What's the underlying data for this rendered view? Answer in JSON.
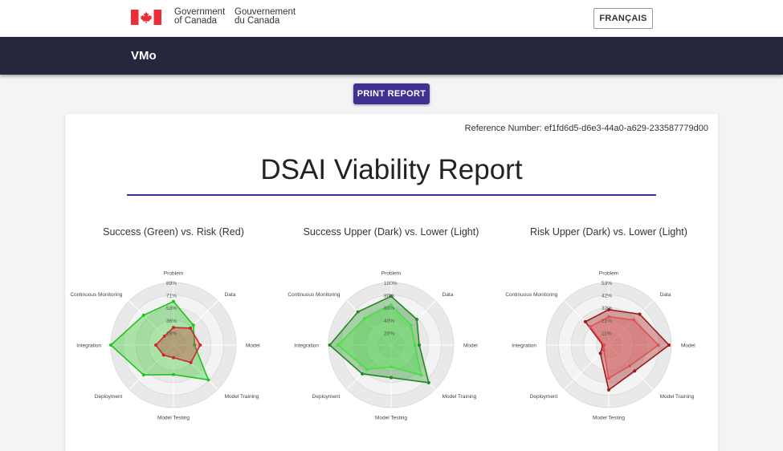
{
  "header": {
    "gov_en_line1": "Government",
    "gov_en_line2": "of Canada",
    "gov_fr_line1": "Gouvernement",
    "gov_fr_line2": "du Canada",
    "language_button": "FRANÇAIS",
    "flag_color": "#eb2d37"
  },
  "app_bar": {
    "title": "VMo",
    "background": "#26273f"
  },
  "print_button": {
    "label": "PRINT REPORT",
    "color": "#3f3294"
  },
  "report": {
    "reference": "Reference Number: ef1fd6d5-d6e3-44a0-a629-233587779d00",
    "title": "DSAI Viability Report"
  },
  "chart_data": [
    {
      "type": "radar",
      "title": "Success (Green) vs. Risk (Red)",
      "categories": [
        "Problem",
        "Data",
        "Model",
        "Model Training",
        "Model Testing",
        "Deployment",
        "Integration",
        "Continuous Monitoring"
      ],
      "tick_labels": [
        "18%",
        "36%",
        "53%",
        "71%",
        "89%"
      ],
      "range": [
        0,
        89
      ],
      "series": [
        {
          "color": "#22c41e",
          "values": [
            62,
            40,
            30,
            70,
            42,
            60,
            89,
            60
          ]
        },
        {
          "color": "#c72b2b",
          "values": [
            25,
            34,
            38,
            35,
            18,
            20,
            25,
            18
          ]
        }
      ]
    },
    {
      "type": "radar",
      "title": "Success Upper (Dark) vs. Lower (Light)",
      "categories": [
        "Problem",
        "Data",
        "Model",
        "Model Training",
        "Model Testing",
        "Deployment",
        "Integration",
        "Continuous Monitoring"
      ],
      "tick_labels": [
        "20%",
        "40%",
        "60%",
        "80%",
        "100%"
      ],
      "range": [
        0,
        100
      ],
      "series": [
        {
          "color": "#1f8a20",
          "values": [
            78,
            58,
            45,
            85,
            52,
            65,
            98,
            75
          ]
        },
        {
          "color": "#3fe53a",
          "values": [
            64,
            45,
            38,
            68,
            35,
            55,
            85,
            60
          ]
        }
      ]
    },
    {
      "type": "radar",
      "title": "Risk Upper (Dark) vs. Lower (Light)",
      "categories": [
        "Problem",
        "Data",
        "Model",
        "Model Training",
        "Model Testing",
        "Deployment",
        "Integration",
        "Continuous Monitoring"
      ],
      "tick_labels": [
        "11%",
        "21%",
        "32%",
        "42%",
        "53%"
      ],
      "range": [
        0,
        53
      ],
      "series": [
        {
          "color": "#a01818",
          "values": [
            30,
            37,
            51,
            31,
            38,
            10,
            5,
            28
          ]
        },
        {
          "color": "#e05050",
          "values": [
            24,
            30,
            42,
            25,
            28,
            6,
            4,
            22
          ]
        }
      ]
    }
  ]
}
